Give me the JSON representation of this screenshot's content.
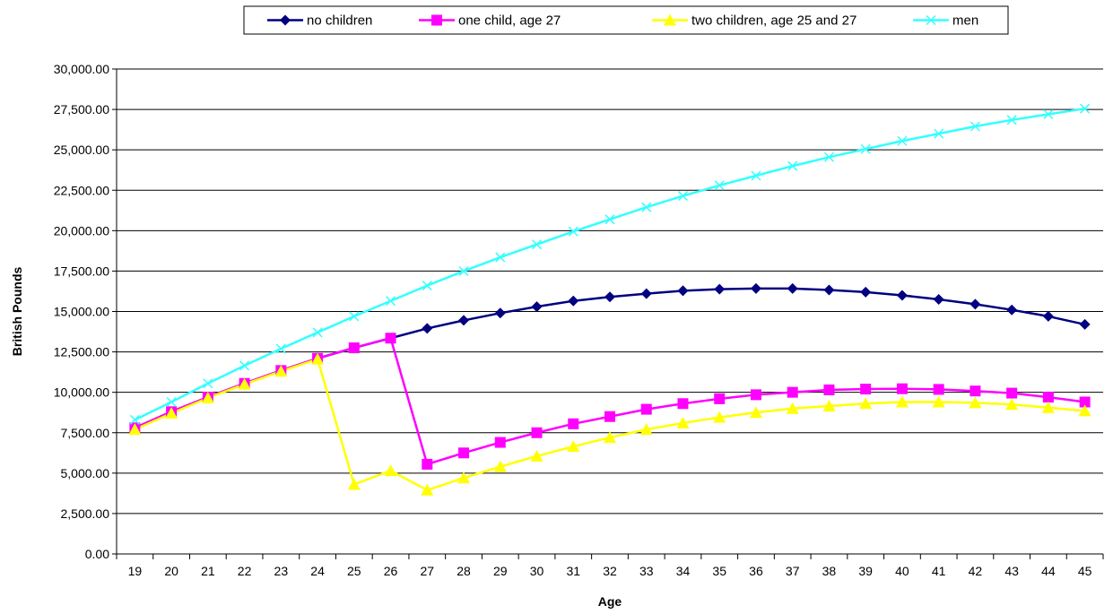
{
  "chart_data": {
    "type": "line",
    "xlabel": "Age",
    "ylabel": "British Pounds",
    "ylim": [
      0,
      30000
    ],
    "grid": "horizontal",
    "legend_position": "top",
    "x": [
      19,
      20,
      21,
      22,
      23,
      24,
      25,
      26,
      27,
      28,
      29,
      30,
      31,
      32,
      33,
      34,
      35,
      36,
      37,
      38,
      39,
      40,
      41,
      42,
      43,
      44,
      45
    ],
    "y_ticks": [
      "0.00",
      "2,500.00",
      "5,000.00",
      "7,500.00",
      "10,000.00",
      "12,500.00",
      "15,000.00",
      "17,500.00",
      "20,000.00",
      "22,500.00",
      "25,000.00",
      "27,500.00",
      "30,000.00"
    ],
    "series": [
      {
        "name": "no children",
        "color": "#000080",
        "marker": "diamond",
        "values": [
          7800,
          8800,
          9700,
          10550,
          11350,
          12100,
          12750,
          13350,
          13950,
          14450,
          14900,
          15300,
          15650,
          15900,
          16100,
          16280,
          16380,
          16420,
          16420,
          16330,
          16200,
          16000,
          15750,
          15450,
          15100,
          14700,
          14200
        ]
      },
      {
        "name": "one child, age 27",
        "color": "#FF00FF",
        "marker": "square",
        "values": [
          7800,
          8800,
          9700,
          10550,
          11350,
          12100,
          12750,
          13350,
          5550,
          6250,
          6900,
          7500,
          8050,
          8500,
          8950,
          9300,
          9600,
          9850,
          10000,
          10150,
          10200,
          10220,
          10180,
          10080,
          9950,
          9700,
          9400
        ]
      },
      {
        "name": "two children, age 25 and 27",
        "color": "#FFFF00",
        "marker": "triangle",
        "values": [
          7700,
          8700,
          9650,
          10500,
          11300,
          12050,
          4300,
          5150,
          3950,
          4700,
          5400,
          6050,
          6650,
          7200,
          7700,
          8100,
          8450,
          8750,
          9000,
          9150,
          9300,
          9400,
          9400,
          9350,
          9250,
          9050,
          8850
        ]
      },
      {
        "name": "men",
        "color": "#33FFFF",
        "marker": "x",
        "values": [
          8300,
          9400,
          10550,
          11650,
          12700,
          13700,
          14700,
          15650,
          16600,
          17500,
          18350,
          19150,
          19950,
          20700,
          21450,
          22150,
          22800,
          23400,
          24000,
          24550,
          25050,
          25550,
          26000,
          26450,
          26850,
          27200,
          27550
        ]
      }
    ]
  }
}
